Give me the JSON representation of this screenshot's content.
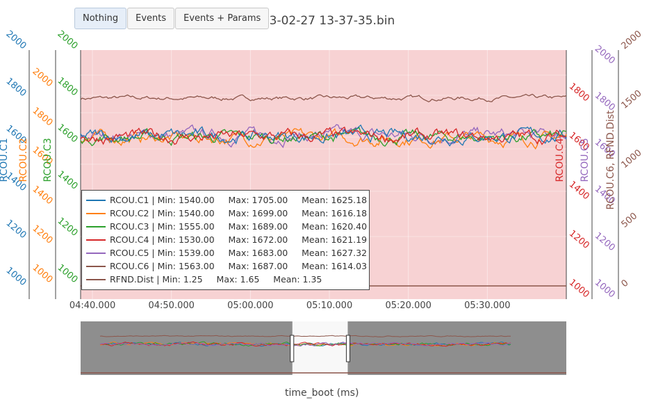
{
  "title": "023-02-27 13-37-35.bin",
  "mode_buttons": [
    {
      "label": "Nothing",
      "active": true
    },
    {
      "label": "Events",
      "active": false
    },
    {
      "label": "Events + Params",
      "active": false
    }
  ],
  "colors": {
    "plot_background": "#f7d2d3",
    "range_selected_bg": "#f8f8f8",
    "range_unselected_bg": "#8e8e8e"
  },
  "chart_data": {
    "type": "line",
    "xlabel": "time_boot (ms)",
    "x_tick_labels": [
      "04:40.000",
      "04:50.000",
      "05:00.000",
      "05:10.000",
      "05:20.000",
      "05:30.000"
    ],
    "x_range_seconds": [
      278.5,
      340
    ],
    "x_tick_seconds": [
      280,
      290,
      300,
      310,
      320,
      330
    ],
    "axes": [
      {
        "id": "y1",
        "label": "RCOU.C1",
        "color": "#1f77b4",
        "range": [
          950,
          2000
        ],
        "ticks": [
          "1000",
          "1200",
          "1400",
          "1600",
          "1800",
          "2000"
        ]
      },
      {
        "id": "y2",
        "label": "RCOU.C2",
        "color": "#ff7f0e",
        "range": [
          950,
          2000
        ],
        "ticks": [
          "1000",
          "1200",
          "1400",
          "1600",
          "1800",
          "2000"
        ]
      },
      {
        "id": "y3",
        "label": "RCOU.C3",
        "color": "#2ca02c",
        "range": [
          950,
          2000
        ],
        "ticks": [
          "1000",
          "1200",
          "1400",
          "1600",
          "1800",
          "2000"
        ]
      },
      {
        "id": "y4",
        "label": "RCOU.C4",
        "color": "#d62728",
        "range": [
          950,
          2000
        ],
        "ticks": [
          "1000",
          "1200",
          "1400",
          "1600",
          "1800"
        ]
      },
      {
        "id": "y5",
        "label": "RCOU.C5",
        "color": "#9467bd",
        "range": [
          950,
          2000
        ],
        "ticks": [
          "1000",
          "1200",
          "1400",
          "1600",
          "1800",
          "2000"
        ]
      },
      {
        "id": "y6",
        "label": "RCOU.C6, RFND.Dist",
        "color": "#8c564b",
        "range": [
          -0.1,
          2.0
        ],
        "ticks": [
          "0",
          "500",
          "1000",
          "1500",
          "2000"
        ]
      }
    ],
    "series": [
      {
        "name": "RCOU.C1",
        "color": "#1f77b4",
        "axis": "y1",
        "min": 1540,
        "max": 1705,
        "mean": 1625.18,
        "legend": "RCOU.C1 | Min: 1540.00     Max: 1705.00     Mean: 1625.18"
      },
      {
        "name": "RCOU.C2",
        "color": "#ff7f0e",
        "axis": "y2",
        "min": 1540,
        "max": 1699,
        "mean": 1616.18,
        "legend": "RCOU.C2 | Min: 1540.00     Max: 1699.00     Mean: 1616.18"
      },
      {
        "name": "RCOU.C3",
        "color": "#2ca02c",
        "axis": "y3",
        "min": 1555,
        "max": 1689,
        "mean": 1620.4,
        "legend": "RCOU.C3 | Min: 1555.00     Max: 1689.00     Mean: 1620.40"
      },
      {
        "name": "RCOU.C4",
        "color": "#d62728",
        "axis": "y4",
        "min": 1530,
        "max": 1672,
        "mean": 1621.19,
        "legend": "RCOU.C4 | Min: 1530.00     Max: 1672.00     Mean: 1621.19"
      },
      {
        "name": "RCOU.C5",
        "color": "#9467bd",
        "axis": "y5",
        "min": 1539,
        "max": 1683,
        "mean": 1627.32,
        "legend": "RCOU.C5 | Min: 1539.00     Max: 1683.00     Mean: 1627.32"
      },
      {
        "name": "RCOU.C6",
        "color": "#8c564b",
        "axis": "y1",
        "min": 1563,
        "max": 1687,
        "mean": 1614.03,
        "legend": "RCOU.C6 | Min: 1563.00     Max: 1687.00     Mean: 1614.03"
      },
      {
        "name": "RFND.Dist",
        "color": "#8c564b",
        "axis": "y6",
        "min": 1.25,
        "max": 1.65,
        "mean": 1.35,
        "legend": "RFND.Dist | Min: 1.25     Max: 1.65     Mean: 1.35"
      }
    ],
    "legend_position": "bottom-left",
    "grid": true,
    "rangeslider": {
      "selected_fraction": [
        0.436,
        0.55
      ]
    }
  }
}
